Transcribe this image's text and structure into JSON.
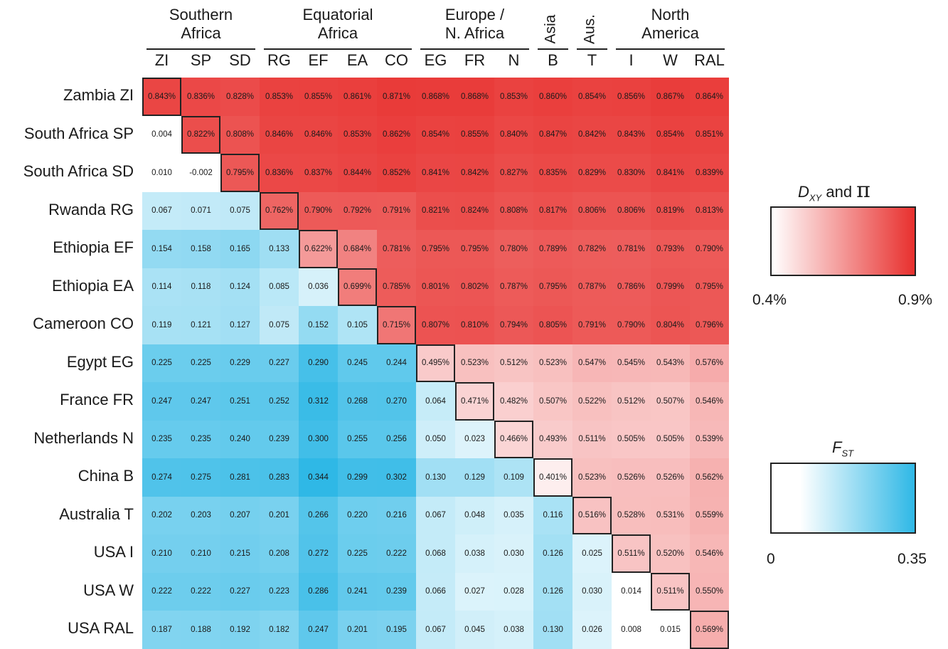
{
  "chart_data": {
    "type": "heatmap",
    "column_groups": [
      {
        "label_lines": [
          "Southern",
          "Africa"
        ],
        "columns": [
          "ZI",
          "SP",
          "SD"
        ]
      },
      {
        "label_lines": [
          "Equatorial",
          "Africa"
        ],
        "columns": [
          "RG",
          "EF",
          "EA",
          "CO"
        ]
      },
      {
        "label_lines": [
          "Europe /",
          "N. Africa"
        ],
        "columns": [
          "EG",
          "FR",
          "N"
        ]
      },
      {
        "label_lines": [
          "Asia"
        ],
        "columns": [
          "B"
        ],
        "vertical": true
      },
      {
        "label_lines": [
          "Aus."
        ],
        "columns": [
          "T"
        ],
        "vertical": true
      },
      {
        "label_lines": [
          "North",
          "America"
        ],
        "columns": [
          "I",
          "W",
          "RAL"
        ]
      }
    ],
    "columns": [
      "ZI",
      "SP",
      "SD",
      "RG",
      "EF",
      "EA",
      "CO",
      "EG",
      "FR",
      "N",
      "B",
      "T",
      "I",
      "W",
      "RAL"
    ],
    "rows": [
      "Zambia ZI",
      "South Africa SP",
      "South Africa SD",
      "Rwanda RG",
      "Ethiopia EF",
      "Ethiopia EA",
      "Cameroon CO",
      "Egypt EG",
      "France FR",
      "Netherlands N",
      "China B",
      "Australia T",
      "USA I",
      "USA W",
      "USA RAL"
    ],
    "cells": [
      [
        "0.843%",
        "0.836%",
        "0.828%",
        "0.853%",
        "0.855%",
        "0.861%",
        "0.871%",
        "0.868%",
        "0.868%",
        "0.853%",
        "0.860%",
        "0.854%",
        "0.856%",
        "0.867%",
        "0.864%"
      ],
      [
        "0.004",
        "0.822%",
        "0.808%",
        "0.846%",
        "0.846%",
        "0.853%",
        "0.862%",
        "0.854%",
        "0.855%",
        "0.840%",
        "0.847%",
        "0.842%",
        "0.843%",
        "0.854%",
        "0.851%"
      ],
      [
        "0.010",
        "-0.002",
        "0.795%",
        "0.836%",
        "0.837%",
        "0.844%",
        "0.852%",
        "0.841%",
        "0.842%",
        "0.827%",
        "0.835%",
        "0.829%",
        "0.830%",
        "0.841%",
        "0.839%"
      ],
      [
        "0.067",
        "0.071",
        "0.075",
        "0.762%",
        "0.790%",
        "0.792%",
        "0.791%",
        "0.821%",
        "0.824%",
        "0.808%",
        "0.817%",
        "0.806%",
        "0.806%",
        "0.819%",
        "0.813%"
      ],
      [
        "0.154",
        "0.158",
        "0.165",
        "0.133",
        "0.622%",
        "0.684%",
        "0.781%",
        "0.795%",
        "0.795%",
        "0.780%",
        "0.789%",
        "0.782%",
        "0.781%",
        "0.793%",
        "0.790%"
      ],
      [
        "0.114",
        "0.118",
        "0.124",
        "0.085",
        "0.036",
        "0.699%",
        "0.785%",
        "0.801%",
        "0.802%",
        "0.787%",
        "0.795%",
        "0.787%",
        "0.786%",
        "0.799%",
        "0.795%"
      ],
      [
        "0.119",
        "0.121",
        "0.127",
        "0.075",
        "0.152",
        "0.105",
        "0.715%",
        "0.807%",
        "0.810%",
        "0.794%",
        "0.805%",
        "0.791%",
        "0.790%",
        "0.804%",
        "0.796%"
      ],
      [
        "0.225",
        "0.225",
        "0.229",
        "0.227",
        "0.290",
        "0.245",
        "0.244",
        "0.495%",
        "0.523%",
        "0.512%",
        "0.523%",
        "0.547%",
        "0.545%",
        "0.543%",
        "0.576%"
      ],
      [
        "0.247",
        "0.247",
        "0.251",
        "0.252",
        "0.312",
        "0.268",
        "0.270",
        "0.064",
        "0.471%",
        "0.482%",
        "0.507%",
        "0.522%",
        "0.512%",
        "0.507%",
        "0.546%"
      ],
      [
        "0.235",
        "0.235",
        "0.240",
        "0.239",
        "0.300",
        "0.255",
        "0.256",
        "0.050",
        "0.023",
        "0.466%",
        "0.493%",
        "0.511%",
        "0.505%",
        "0.505%",
        "0.539%"
      ],
      [
        "0.274",
        "0.275",
        "0.281",
        "0.283",
        "0.344",
        "0.299",
        "0.302",
        "0.130",
        "0.129",
        "0.109",
        "0.401%",
        "0.523%",
        "0.526%",
        "0.526%",
        "0.562%"
      ],
      [
        "0.202",
        "0.203",
        "0.207",
        "0.201",
        "0.266",
        "0.220",
        "0.216",
        "0.067",
        "0.048",
        "0.035",
        "0.116",
        "0.516%",
        "0.528%",
        "0.531%",
        "0.559%"
      ],
      [
        "0.210",
        "0.210",
        "0.215",
        "0.208",
        "0.272",
        "0.225",
        "0.222",
        "0.068",
        "0.038",
        "0.030",
        "0.126",
        "0.025",
        "0.511%",
        "0.520%",
        "0.546%"
      ],
      [
        "0.222",
        "0.222",
        "0.227",
        "0.223",
        "0.286",
        "0.241",
        "0.239",
        "0.066",
        "0.027",
        "0.028",
        "0.126",
        "0.030",
        "0.014",
        "0.511%",
        "0.550%"
      ],
      [
        "0.187",
        "0.188",
        "0.192",
        "0.182",
        "0.247",
        "0.201",
        "0.195",
        "0.067",
        "0.045",
        "0.038",
        "0.130",
        "0.026",
        "0.008",
        "0.015",
        "0.569%"
      ]
    ],
    "legend_dxy": {
      "title_main": "D",
      "title_sub": "XY",
      "title_rest": " and ",
      "title_pi": "π",
      "min_label": "0.4%",
      "max_label": "0.9%",
      "min": 0.4,
      "max": 0.9,
      "color_low": "#ffffff",
      "color_high": "#e8302e"
    },
    "legend_fst": {
      "title_main": "F",
      "title_sub": "ST",
      "min_label": "0",
      "max_label": "0.35",
      "min": 0,
      "max": 0.35,
      "color_low": "#ffffff",
      "color_high": "#2fb8e6"
    }
  }
}
